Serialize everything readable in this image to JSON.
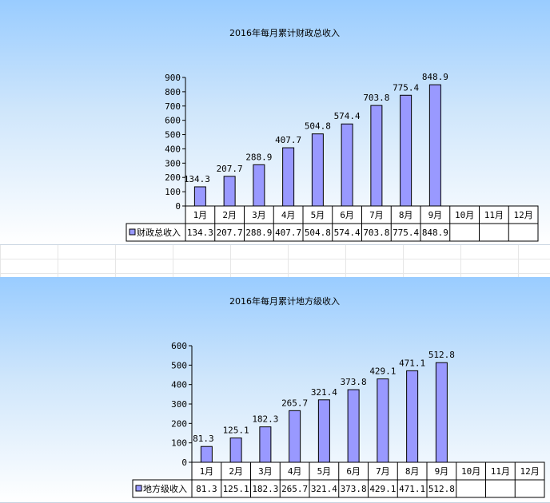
{
  "chart_data": [
    {
      "type": "bar",
      "title": "2016年每月累计财政总收入",
      "categories": [
        "1月",
        "2月",
        "3月",
        "4月",
        "5月",
        "6月",
        "7月",
        "8月",
        "9月",
        "10月",
        "11月",
        "12月"
      ],
      "series": [
        {
          "name": "财政总收入",
          "values": [
            134.3,
            207.7,
            288.9,
            407.7,
            504.8,
            574.4,
            703.8,
            775.4,
            848.9,
            null,
            null,
            null
          ]
        }
      ],
      "y_ticks": [
        "0",
        "100",
        "200",
        "300",
        "400",
        "500",
        "600",
        "700",
        "800",
        "900"
      ],
      "ylim": [
        0,
        900
      ],
      "data_table": true,
      "colors": {
        "bar": "#9999ff",
        "bar_stroke": "#000000"
      }
    },
    {
      "type": "bar",
      "title": "2016年每月累计地方级收入",
      "categories": [
        "1月",
        "2月",
        "3月",
        "4月",
        "5月",
        "6月",
        "7月",
        "8月",
        "9月",
        "10月",
        "11月",
        "12月"
      ],
      "series": [
        {
          "name": "地方级收入",
          "values": [
            81.3,
            125.1,
            182.3,
            265.7,
            321.4,
            373.8,
            429.1,
            471.1,
            512.8,
            null,
            null,
            null
          ]
        }
      ],
      "y_ticks": [
        "0",
        "100",
        "200",
        "300",
        "400",
        "500",
        "600"
      ],
      "ylim": [
        0,
        600
      ],
      "data_table": true,
      "colors": {
        "bar": "#9999ff",
        "bar_stroke": "#000000"
      }
    }
  ]
}
